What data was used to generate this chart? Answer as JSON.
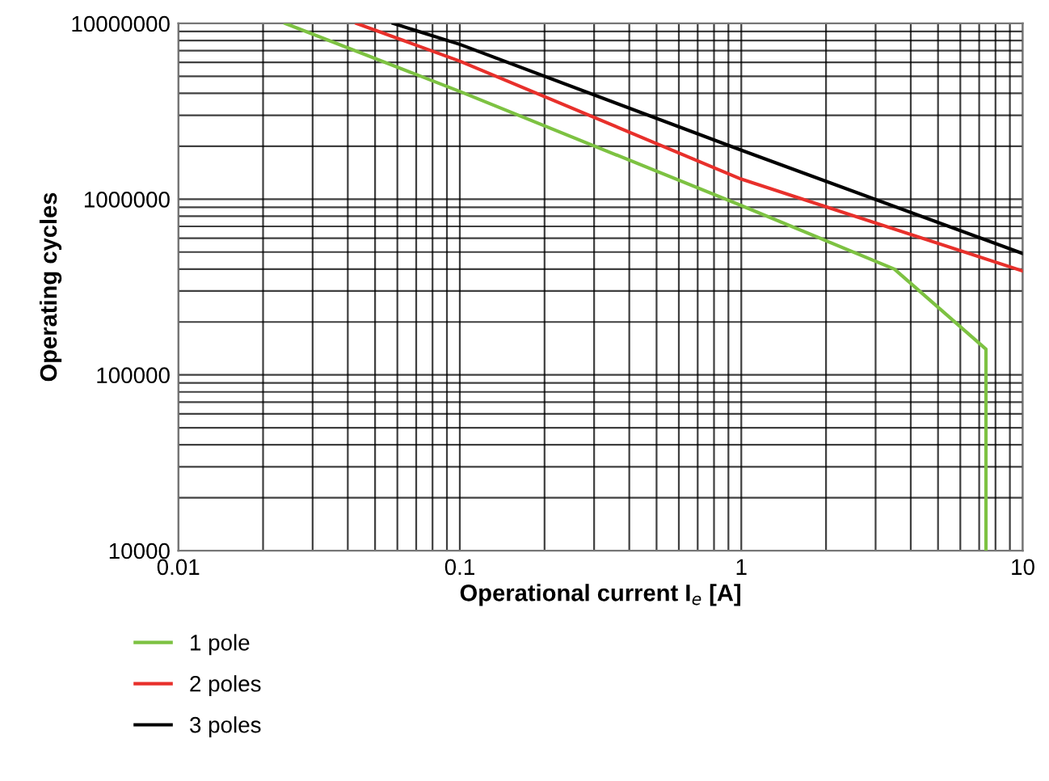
{
  "chart_data": {
    "type": "line",
    "xlabel": "Operational current I$_{e}$ [A]",
    "ylabel": "Operating cycles",
    "log": "xy",
    "xlim": [
      0.01,
      10
    ],
    "ylim": [
      10000,
      10000000
    ],
    "xticks": [
      0.01,
      0.1,
      1,
      10
    ],
    "yticks": [
      10000,
      100000,
      1000000,
      10000000
    ],
    "grid": true,
    "legend": "bottom",
    "line_style": "solid",
    "marker": "none",
    "series": [
      {
        "name": "1 pole",
        "color": "#7dc242",
        "x": [
          0.024,
          0.1,
          1,
          3.5,
          7.4,
          7.4
        ],
        "values": [
          10000000,
          4100000,
          920000,
          400000,
          140000,
          10000
        ]
      },
      {
        "name": "2 poles",
        "color": "#e8302b",
        "x": [
          0.043,
          0.1,
          1,
          10
        ],
        "values": [
          10000000,
          6100000,
          1300000,
          390000
        ]
      },
      {
        "name": "3 poles",
        "color": "#000000",
        "x": [
          0.058,
          0.1,
          1,
          10
        ],
        "values": [
          10000000,
          7600000,
          1900000,
          490000
        ]
      }
    ]
  }
}
